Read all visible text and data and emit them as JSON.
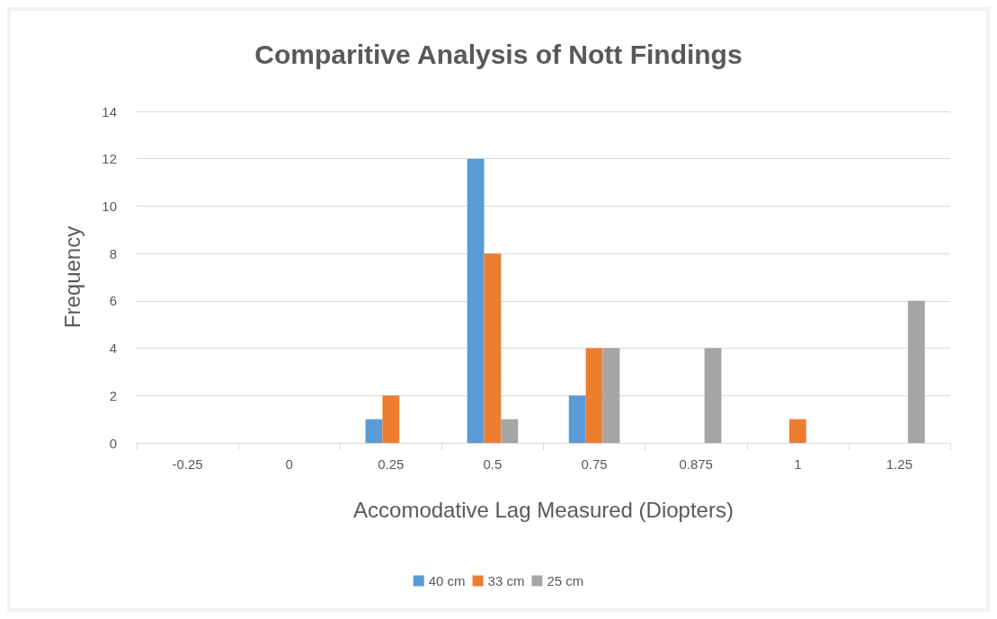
{
  "chart_data": {
    "type": "bar",
    "title": "Comparitive Analysis of Nott Findings",
    "xlabel": "Accomodative Lag Measured (Diopters)",
    "ylabel": "Frequency",
    "categories": [
      "-0.25",
      "0",
      "0.25",
      "0.5",
      "0.75",
      "0.875",
      "1",
      "1.25"
    ],
    "series": [
      {
        "name": "40 cm",
        "color": "#5b9bd5",
        "values": [
          0,
          0,
          1,
          12,
          2,
          0,
          0,
          0
        ]
      },
      {
        "name": "33 cm",
        "color": "#ed7d31",
        "values": [
          0,
          0,
          2,
          8,
          4,
          0,
          1,
          0
        ]
      },
      {
        "name": "25 cm",
        "color": "#a5a5a5",
        "values": [
          0,
          0,
          0,
          1,
          4,
          4,
          0,
          6
        ]
      }
    ],
    "ylim": [
      0,
      14
    ],
    "yticks": [
      0,
      2,
      4,
      6,
      8,
      10,
      12,
      14
    ],
    "grid": "y",
    "legend": "bottom"
  }
}
